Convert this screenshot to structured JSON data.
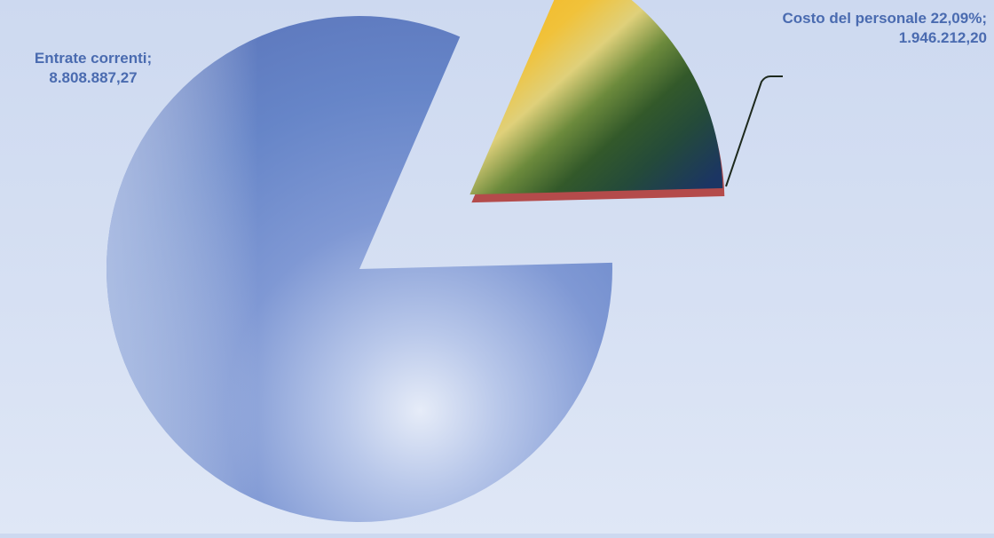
{
  "chart_data": {
    "type": "pie",
    "slices": [
      {
        "name": "Entrate correnti",
        "value": 8808887.27,
        "label_name": "Entrate correnti;",
        "label_value": "8.808.887,27",
        "color": "#6f8fd0"
      },
      {
        "name": "Costo del personale",
        "value": 1946212.2,
        "percent": 22.09,
        "label_name": "Costo del personale 22,09%;",
        "label_value": "1.946.212,20",
        "color": "#e0a830",
        "exploded": true
      }
    ],
    "legend": "none",
    "labels": "outside"
  },
  "colors": {
    "background": "#d2ddf1",
    "label_text": "#4a6bb0",
    "pie_main": "#6f8fd0",
    "slice_orange": "#e0a830",
    "slice_green": "#3f6a2c",
    "slice_navy": "#1f3a6a",
    "slice_edge": "#b44b4b"
  }
}
